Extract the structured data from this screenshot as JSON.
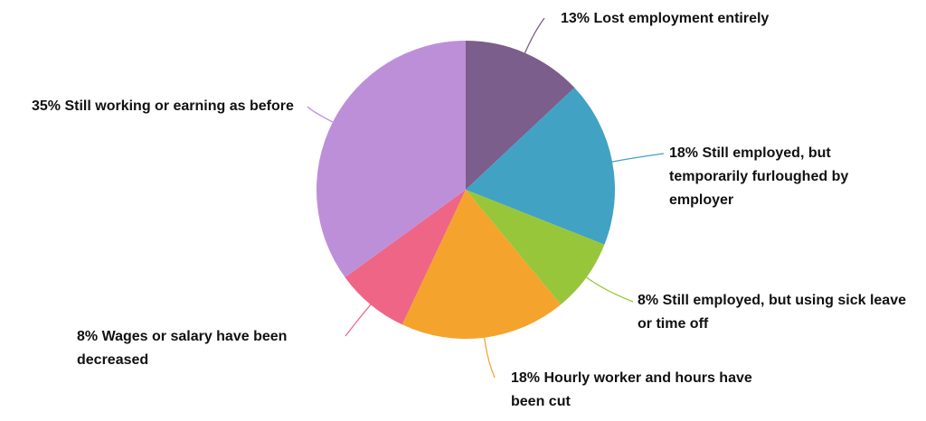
{
  "chart_data": {
    "type": "pie",
    "categories": [
      "Lost employment entirely",
      "Still employed, but temporarily furloughed by employer",
      "Still employed, but using sick leave or time off",
      "Hourly worker and hours have been cut",
      "Wages or salary have been decreased",
      "Still working or earning as before"
    ],
    "values": [
      13,
      18,
      8,
      18,
      8,
      35
    ],
    "value_labels": [
      "13%",
      "18%",
      "8%",
      "18%",
      "8%",
      "35%"
    ],
    "colors": [
      "#7b5e8c",
      "#41a2c4",
      "#97c63b",
      "#f4a42c",
      "#ef6585",
      "#bd8fd9"
    ]
  }
}
